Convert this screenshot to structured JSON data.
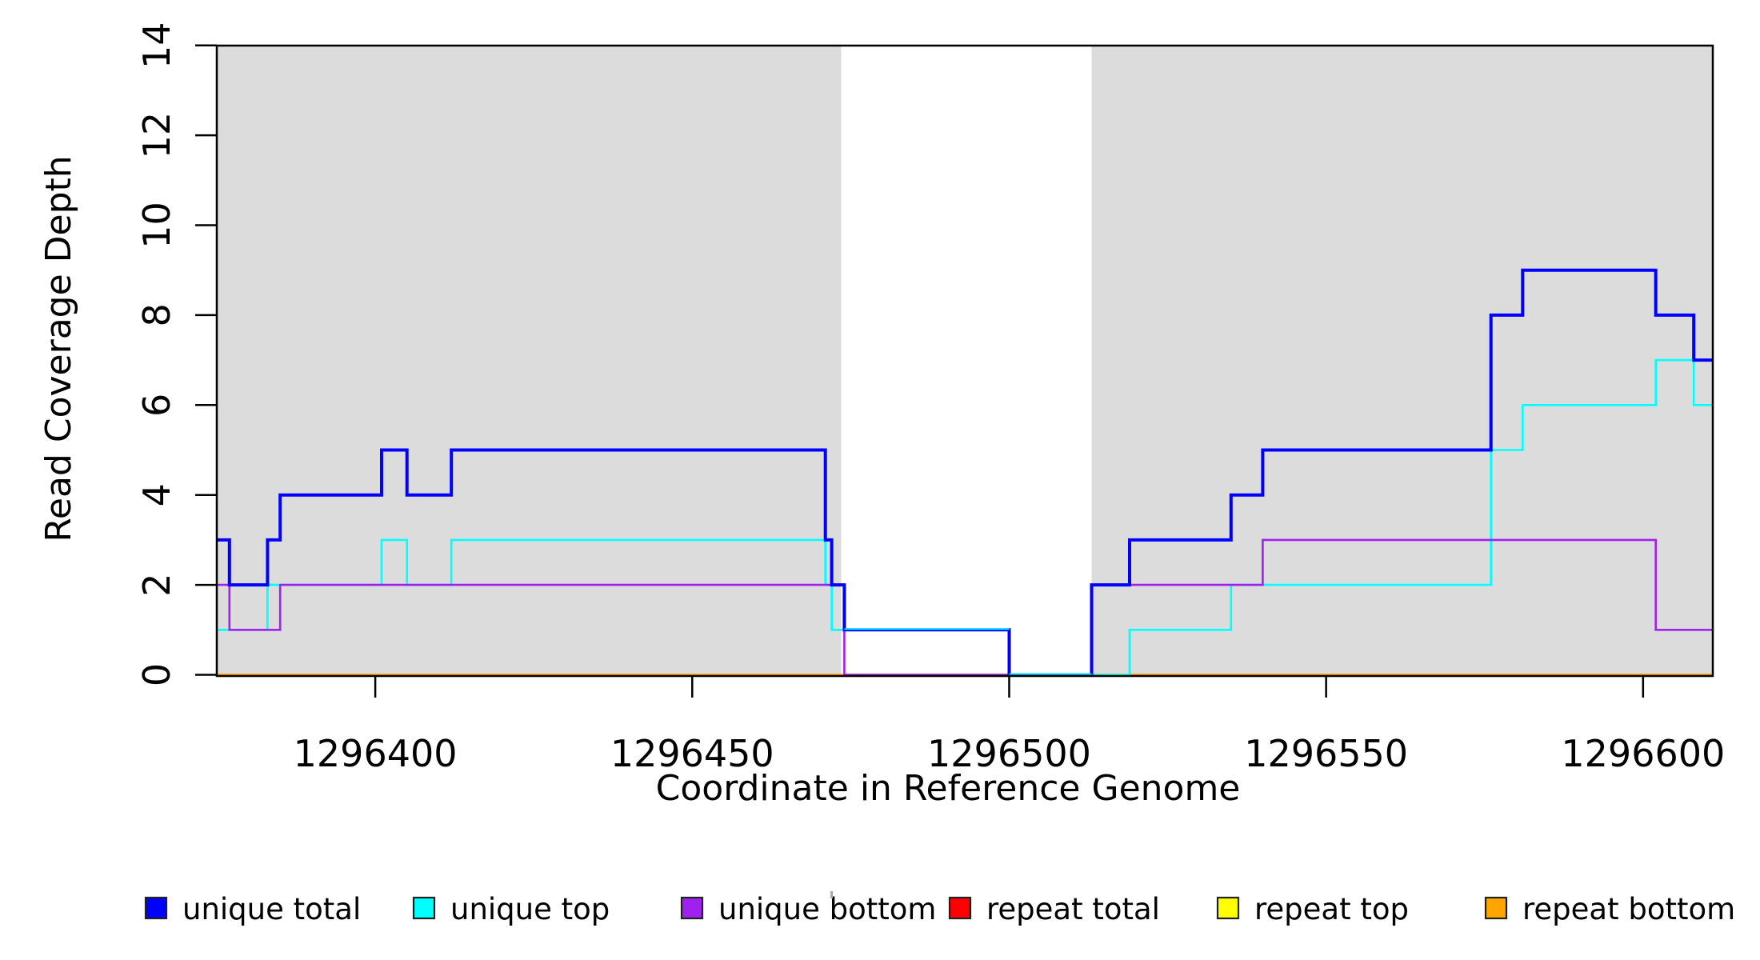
{
  "figure": {
    "x_axis_title": "Coordinate in Reference Genome",
    "y_axis_title": "Read Coverage Depth"
  },
  "axes": {
    "x": {
      "tick_values": [
        1296400,
        1296450,
        1296500,
        1296550,
        1296600
      ],
      "tick_labels": [
        "1296400",
        "1296450",
        "1296500",
        "1296550",
        "1296600"
      ]
    },
    "y": {
      "tick_values": [
        0,
        2,
        4,
        6,
        8,
        10,
        12,
        14
      ],
      "tick_labels": [
        "0",
        "2",
        "4",
        "6",
        "8",
        "10",
        "12",
        "14"
      ]
    }
  },
  "legend": {
    "items": [
      {
        "label": "unique total",
        "color": "#0000FF"
      },
      {
        "label": "unique top",
        "color": "#00FFFF"
      },
      {
        "label": "unique bottom",
        "color": "#A020F0"
      },
      {
        "label": "repeat total",
        "color": "#FF0000"
      },
      {
        "label": "repeat top",
        "color": "#FFFF00"
      },
      {
        "label": "repeat bottom",
        "color": "#FFA500"
      }
    ]
  },
  "chart_data": {
    "type": "line",
    "subtype": "step-after",
    "xlabel": "Coordinate in Reference Genome",
    "ylabel": "Read Coverage Depth",
    "xlim": [
      1296375,
      1296611
    ],
    "ylim": [
      0,
      14
    ],
    "grid": false,
    "legend_position": "bottom",
    "band_color": "#DCDCDC",
    "shaded_regions": [
      {
        "name": "annotated-region-left",
        "from": 1296375,
        "to": 1296473.5
      },
      {
        "name": "annotated-region-right",
        "from": 1296513,
        "to": 1296611
      }
    ],
    "series": [
      {
        "name": "repeat total",
        "color": "#FF0000",
        "width": 2.6,
        "steps": [
          [
            1296375,
            0
          ],
          [
            1296611,
            0
          ]
        ]
      },
      {
        "name": "repeat top",
        "color": "#FFFF00",
        "width": 2.6,
        "steps": [
          [
            1296375,
            0
          ],
          [
            1296611,
            0
          ]
        ]
      },
      {
        "name": "repeat bottom",
        "color": "#FFA500",
        "width": 3,
        "steps": [
          [
            1296375,
            0
          ],
          [
            1296611,
            0
          ]
        ]
      },
      {
        "name": "unique top",
        "color": "#00FFFF",
        "width": 2.6,
        "steps": [
          [
            1296375,
            1
          ],
          [
            1296383,
            2
          ],
          [
            1296401,
            3
          ],
          [
            1296405,
            2
          ],
          [
            1296412,
            3
          ],
          [
            1296471,
            2
          ],
          [
            1296472,
            1
          ],
          [
            1296500,
            0
          ],
          [
            1296519,
            1
          ],
          [
            1296535,
            2
          ],
          [
            1296576,
            5
          ],
          [
            1296581,
            6
          ],
          [
            1296602,
            7
          ],
          [
            1296608,
            6
          ],
          [
            1296611,
            6
          ]
        ]
      },
      {
        "name": "unique bottom",
        "color": "#A020F0",
        "width": 2.6,
        "steps": [
          [
            1296375,
            2
          ],
          [
            1296377,
            1
          ],
          [
            1296385,
            2
          ],
          [
            1296474,
            0
          ],
          [
            1296513,
            2
          ],
          [
            1296540,
            3
          ],
          [
            1296602,
            1
          ],
          [
            1296611,
            1
          ]
        ]
      },
      {
        "name": "unique total",
        "color": "#0000FF",
        "width": 4,
        "steps": [
          [
            1296375,
            3
          ],
          [
            1296377,
            2
          ],
          [
            1296383,
            3
          ],
          [
            1296385,
            4
          ],
          [
            1296401,
            5
          ],
          [
            1296405,
            4
          ],
          [
            1296412,
            5
          ],
          [
            1296471,
            3
          ],
          [
            1296472,
            2
          ],
          [
            1296474,
            1
          ],
          [
            1296500,
            0
          ],
          [
            1296513,
            2
          ],
          [
            1296519,
            3
          ],
          [
            1296535,
            4
          ],
          [
            1296540,
            5
          ],
          [
            1296576,
            8
          ],
          [
            1296581,
            9
          ],
          [
            1296602,
            8
          ],
          [
            1296608,
            7
          ],
          [
            1296611,
            7
          ]
        ]
      }
    ]
  }
}
